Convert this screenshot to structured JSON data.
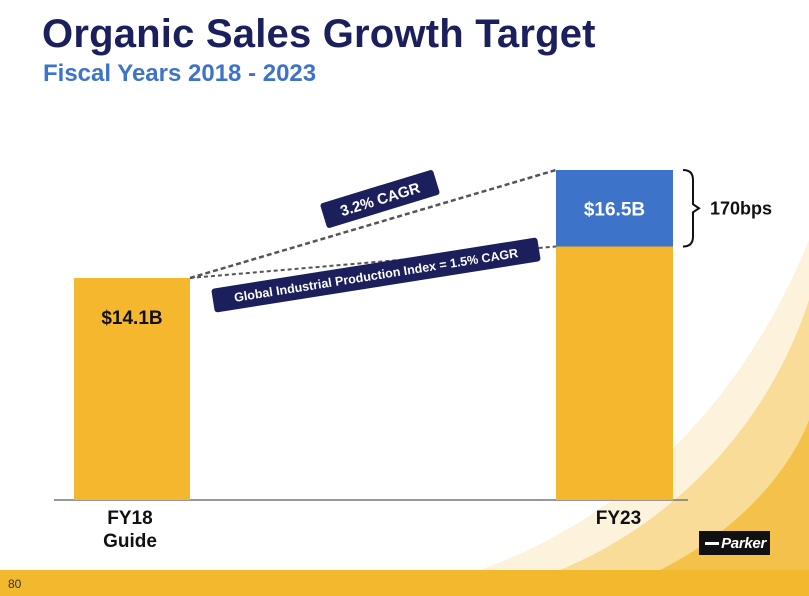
{
  "slide": {
    "title": "Organic Sales Growth Target",
    "subtitle": "Fiscal Years 2018 - 2023",
    "page_number": "80",
    "logo_text": "Parker",
    "colors": {
      "title": "#1b1f5c",
      "subtitle": "#3d73c8",
      "bar": "#f4b72e",
      "increment": "#3d73c8",
      "label_box": "#1b1f5c",
      "footer": "#f2b92e"
    }
  },
  "chart_data": {
    "type": "bar",
    "categories": [
      "FY18\nGuide",
      "FY23"
    ],
    "values": [
      14.1,
      16.5
    ],
    "value_labels": [
      "$14.1B",
      "$16.5B"
    ],
    "stacked_increment": {
      "category": "FY23",
      "amount": 1.7,
      "label": "$16.5B",
      "bracket_label": "170bps"
    },
    "annotations": [
      {
        "text": "3.2% CAGR",
        "from": "FY18\nGuide",
        "to": "FY23",
        "line_top": 16.5
      },
      {
        "text": "Global Industrial Production Index = 1.5% CAGR",
        "from": "FY18\nGuide",
        "to": "FY23",
        "line_top": 14.8
      }
    ],
    "ylim": [
      0,
      16.5
    ],
    "grid": false,
    "legend": "none",
    "xlabel": "",
    "ylabel": ""
  }
}
